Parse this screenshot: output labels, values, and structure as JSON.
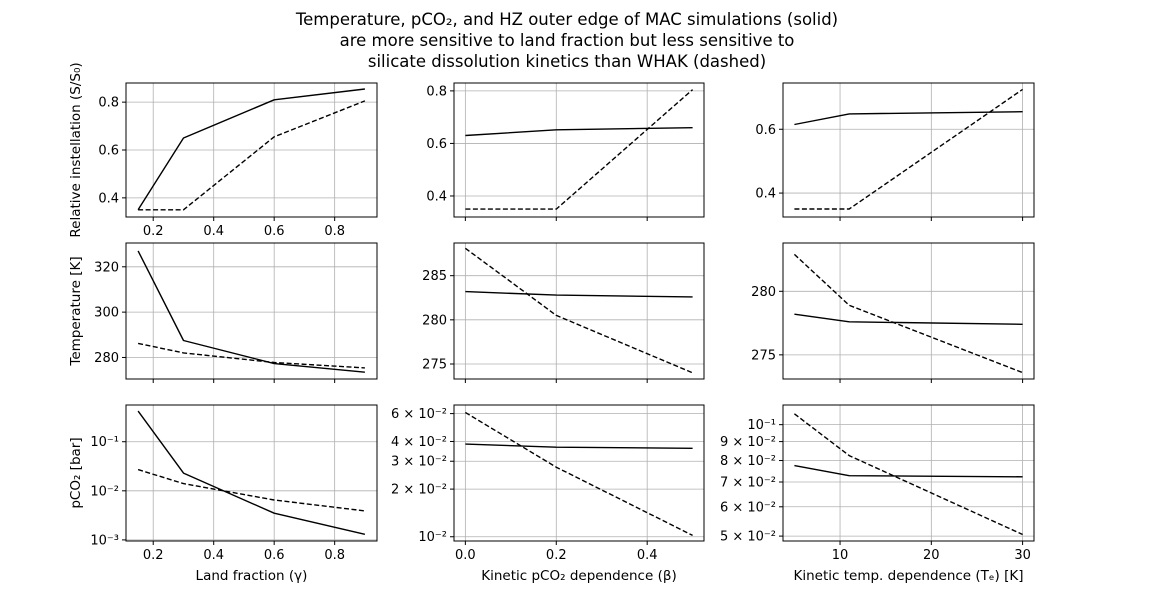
{
  "figure": {
    "title_lines": [
      "Temperature, pCO₂, and HZ outer edge of MAC simulations (solid)",
      "are more sensitive to land fraction but less sensitive to",
      "silicate dissolution kinetics than WHAK (dashed)"
    ]
  },
  "chart_data": [
    {
      "type": "line",
      "id": "relinst-gamma",
      "row": 0,
      "col": 0,
      "ylabel": "Relative instellation (S/S₀)",
      "xlabel": "",
      "xlim": [
        0.11,
        0.94
      ],
      "ylim": [
        0.32,
        0.88
      ],
      "yscale": "linear",
      "xticks": [
        {
          "v": 0.2,
          "label": "0.2"
        },
        {
          "v": 0.4,
          "label": "0.4"
        },
        {
          "v": 0.6,
          "label": "0.6"
        },
        {
          "v": 0.8,
          "label": "0.8"
        }
      ],
      "yticks": [
        {
          "v": 0.4,
          "label": "0.4"
        },
        {
          "v": 0.6,
          "label": "0.6"
        },
        {
          "v": 0.8,
          "label": "0.8"
        }
      ],
      "series": [
        {
          "name": "MAC",
          "style": "solid",
          "x": [
            0.15,
            0.3,
            0.6,
            0.9
          ],
          "y": [
            0.35,
            0.65,
            0.81,
            0.855
          ]
        },
        {
          "name": "WHAK",
          "style": "dashed",
          "x": [
            0.15,
            0.3,
            0.6,
            0.9
          ],
          "y": [
            0.35,
            0.35,
            0.655,
            0.805
          ]
        }
      ]
    },
    {
      "type": "line",
      "id": "relinst-beta",
      "row": 0,
      "col": 1,
      "ylabel": "",
      "xlabel": "",
      "xlim": [
        -0.025,
        0.525
      ],
      "ylim": [
        0.32,
        0.83
      ],
      "yscale": "linear",
      "xticks": [
        {
          "v": 0.0,
          "label": ""
        },
        {
          "v": 0.2,
          "label": ""
        },
        {
          "v": 0.4,
          "label": ""
        }
      ],
      "yticks": [
        {
          "v": 0.4,
          "label": "0.4"
        },
        {
          "v": 0.6,
          "label": "0.6"
        },
        {
          "v": 0.8,
          "label": "0.8"
        }
      ],
      "series": [
        {
          "name": "MAC",
          "style": "solid",
          "x": [
            0.0,
            0.2,
            0.5
          ],
          "y": [
            0.63,
            0.652,
            0.66
          ]
        },
        {
          "name": "WHAK",
          "style": "dashed",
          "x": [
            0.0,
            0.2,
            0.5
          ],
          "y": [
            0.35,
            0.35,
            0.805
          ]
        }
      ]
    },
    {
      "type": "line",
      "id": "relinst-te",
      "row": 0,
      "col": 2,
      "ylabel": "",
      "xlabel": "",
      "xlim": [
        3.75,
        31.25
      ],
      "ylim": [
        0.325,
        0.745
      ],
      "yscale": "linear",
      "xticks": [
        {
          "v": 10,
          "label": ""
        },
        {
          "v": 20,
          "label": ""
        },
        {
          "v": 30,
          "label": ""
        }
      ],
      "yticks": [
        {
          "v": 0.4,
          "label": "0.4"
        },
        {
          "v": 0.6,
          "label": "0.6"
        }
      ],
      "series": [
        {
          "name": "MAC",
          "style": "solid",
          "x": [
            5,
            11,
            30
          ],
          "y": [
            0.615,
            0.648,
            0.655
          ]
        },
        {
          "name": "WHAK",
          "style": "dashed",
          "x": [
            5,
            11,
            30
          ],
          "y": [
            0.35,
            0.35,
            0.725
          ]
        }
      ]
    },
    {
      "type": "line",
      "id": "temp-gamma",
      "row": 1,
      "col": 0,
      "ylabel": "Temperature [K]",
      "xlabel": "",
      "xlim": [
        0.11,
        0.94
      ],
      "ylim": [
        270.5,
        330.5
      ],
      "yscale": "linear",
      "xticks": [
        {
          "v": 0.2,
          "label": ""
        },
        {
          "v": 0.4,
          "label": ""
        },
        {
          "v": 0.6,
          "label": ""
        },
        {
          "v": 0.8,
          "label": ""
        }
      ],
      "yticks": [
        {
          "v": 280,
          "label": "280"
        },
        {
          "v": 300,
          "label": "300"
        },
        {
          "v": 320,
          "label": "320"
        }
      ],
      "series": [
        {
          "name": "MAC",
          "style": "solid",
          "x": [
            0.15,
            0.3,
            0.6,
            0.9
          ],
          "y": [
            327,
            287.5,
            277.3,
            273.5
          ]
        },
        {
          "name": "WHAK",
          "style": "dashed",
          "x": [
            0.15,
            0.3,
            0.6,
            0.9
          ],
          "y": [
            286.2,
            282,
            277.8,
            275.4
          ]
        }
      ]
    },
    {
      "type": "line",
      "id": "temp-beta",
      "row": 1,
      "col": 1,
      "ylabel": "",
      "xlabel": "",
      "xlim": [
        -0.025,
        0.525
      ],
      "ylim": [
        273.3,
        288.7
      ],
      "yscale": "linear",
      "xticks": [
        {
          "v": 0.0,
          "label": ""
        },
        {
          "v": 0.2,
          "label": ""
        },
        {
          "v": 0.4,
          "label": ""
        }
      ],
      "yticks": [
        {
          "v": 275,
          "label": "275"
        },
        {
          "v": 280,
          "label": "280"
        },
        {
          "v": 285,
          "label": "285"
        }
      ],
      "series": [
        {
          "name": "MAC",
          "style": "solid",
          "x": [
            0.0,
            0.2,
            0.5
          ],
          "y": [
            283.2,
            282.8,
            282.6
          ]
        },
        {
          "name": "WHAK",
          "style": "dashed",
          "x": [
            0.0,
            0.2,
            0.5
          ],
          "y": [
            288.1,
            280.5,
            274
          ]
        }
      ]
    },
    {
      "type": "line",
      "id": "temp-te",
      "row": 1,
      "col": 2,
      "ylabel": "",
      "xlabel": "",
      "xlim": [
        3.75,
        31.25
      ],
      "ylim": [
        273.1,
        283.8
      ],
      "yscale": "linear",
      "xticks": [
        {
          "v": 10,
          "label": ""
        },
        {
          "v": 20,
          "label": ""
        },
        {
          "v": 30,
          "label": ""
        }
      ],
      "yticks": [
        {
          "v": 275,
          "label": "275"
        },
        {
          "v": 280,
          "label": "280"
        }
      ],
      "series": [
        {
          "name": "MAC",
          "style": "solid",
          "x": [
            5,
            11,
            30
          ],
          "y": [
            278.2,
            277.6,
            277.4
          ]
        },
        {
          "name": "WHAK",
          "style": "dashed",
          "x": [
            5,
            11,
            30
          ],
          "y": [
            282.9,
            278.9,
            273.6
          ]
        }
      ]
    },
    {
      "type": "line",
      "id": "pco2-gamma",
      "row": 2,
      "col": 0,
      "ylabel": "pCO₂ [bar]",
      "xlabel": "Land fraction (γ)",
      "xlim": [
        0.11,
        0.94
      ],
      "ylim": [
        0.00095,
        0.56
      ],
      "yscale": "log",
      "xticks": [
        {
          "v": 0.2,
          "label": "0.2"
        },
        {
          "v": 0.4,
          "label": "0.4"
        },
        {
          "v": 0.6,
          "label": "0.6"
        },
        {
          "v": 0.8,
          "label": "0.8"
        }
      ],
      "yticks": [
        {
          "v": 0.001,
          "label": "10⁻³"
        },
        {
          "v": 0.01,
          "label": "10⁻²"
        },
        {
          "v": 0.1,
          "label": "10⁻¹"
        }
      ],
      "series": [
        {
          "name": "MAC",
          "style": "solid",
          "x": [
            0.15,
            0.3,
            0.6,
            0.9
          ],
          "y": [
            0.42,
            0.023,
            0.0035,
            0.0013
          ]
        },
        {
          "name": "WHAK",
          "style": "dashed",
          "x": [
            0.15,
            0.3,
            0.6,
            0.9
          ],
          "y": [
            0.027,
            0.014,
            0.0065,
            0.0039
          ]
        }
      ]
    },
    {
      "type": "line",
      "id": "pco2-beta",
      "row": 2,
      "col": 1,
      "ylabel": "",
      "xlabel": "Kinetic pCO₂ dependence (β)",
      "xlim": [
        -0.025,
        0.525
      ],
      "ylim": [
        0.0094,
        0.068
      ],
      "yscale": "log",
      "xticks": [
        {
          "v": 0.0,
          "label": "0.0"
        },
        {
          "v": 0.2,
          "label": "0.2"
        },
        {
          "v": 0.4,
          "label": "0.4"
        }
      ],
      "yticks": [
        {
          "v": 0.01,
          "label": "10⁻²"
        },
        {
          "v": 0.02,
          "label": "2 × 10⁻²"
        },
        {
          "v": 0.03,
          "label": "3 × 10⁻²"
        },
        {
          "v": 0.04,
          "label": "4 × 10⁻²"
        },
        {
          "v": 0.06,
          "label": "6 × 10⁻²"
        }
      ],
      "series": [
        {
          "name": "MAC",
          "style": "solid",
          "x": [
            0.0,
            0.2,
            0.5
          ],
          "y": [
            0.0385,
            0.0368,
            0.0362
          ]
        },
        {
          "name": "WHAK",
          "style": "dashed",
          "x": [
            0.0,
            0.2,
            0.5
          ],
          "y": [
            0.061,
            0.0275,
            0.0102
          ]
        }
      ]
    },
    {
      "type": "line",
      "id": "pco2-te",
      "row": 2,
      "col": 2,
      "ylabel": "",
      "xlabel": "Kinetic temp. dependence (Tₑ) [K]",
      "xlim": [
        3.75,
        31.25
      ],
      "ylim": [
        0.0485,
        0.113
      ],
      "yscale": "log",
      "xticks": [
        {
          "v": 10,
          "label": "10"
        },
        {
          "v": 20,
          "label": "20"
        },
        {
          "v": 30,
          "label": "30"
        }
      ],
      "yticks": [
        {
          "v": 0.05,
          "label": "5 × 10⁻²"
        },
        {
          "v": 0.06,
          "label": "6 × 10⁻²"
        },
        {
          "v": 0.07,
          "label": "7 × 10⁻²"
        },
        {
          "v": 0.08,
          "label": "8 × 10⁻²"
        },
        {
          "v": 0.09,
          "label": "9 × 10⁻²"
        },
        {
          "v": 0.1,
          "label": "10⁻¹"
        }
      ],
      "series": [
        {
          "name": "MAC",
          "style": "solid",
          "x": [
            5,
            11,
            30
          ],
          "y": [
            0.0775,
            0.0728,
            0.0723
          ]
        },
        {
          "name": "WHAK",
          "style": "dashed",
          "x": [
            5,
            11,
            30
          ],
          "y": [
            0.107,
            0.0825,
            0.0505
          ]
        }
      ]
    }
  ]
}
